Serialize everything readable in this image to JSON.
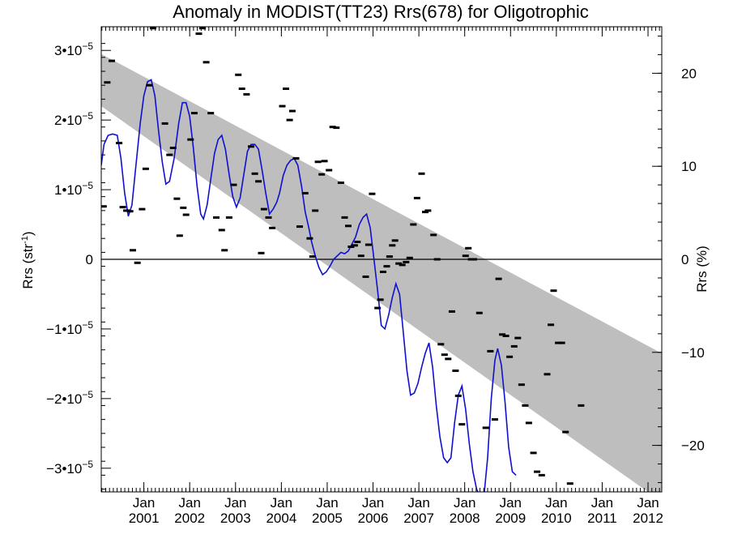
{
  "chart_data": {
    "type": "scatter",
    "title": "Anomaly in MODIST(TT23) Rrs(678) for Oligotrophic",
    "ylabel_left": "Rrs (str",
    "ylabel_left_sup": "-1",
    "ylabel_left_close": ")",
    "ylabel_right": "Rrs (%)",
    "xlim": [
      2000.07,
      2012.3
    ],
    "ylim": [
      -3.34e-05,
      3.34e-05
    ],
    "y_right_lim": [
      -25,
      25
    ],
    "grid": false,
    "x_ticks": [
      {
        "month": "Jan",
        "year": "2001",
        "x": 2001
      },
      {
        "month": "Jan",
        "year": "2002",
        "x": 2002
      },
      {
        "month": "Jan",
        "year": "2003",
        "x": 2003
      },
      {
        "month": "Jan",
        "year": "2004",
        "x": 2004
      },
      {
        "month": "Jan",
        "year": "2005",
        "x": 2005
      },
      {
        "month": "Jan",
        "year": "2006",
        "x": 2006
      },
      {
        "month": "Jan",
        "year": "2007",
        "x": 2007
      },
      {
        "month": "Jan",
        "year": "2008",
        "x": 2008
      },
      {
        "month": "Jan",
        "year": "2009",
        "x": 2009
      },
      {
        "month": "Jan",
        "year": "2010",
        "x": 2010
      },
      {
        "month": "Jan",
        "year": "2011",
        "x": 2011
      },
      {
        "month": "Jan",
        "year": "2012",
        "x": 2012
      }
    ],
    "y_left_ticks": [
      {
        "label": "3•10",
        "exp": "−5",
        "value": 3e-05
      },
      {
        "label": "2•10",
        "exp": "−5",
        "value": 2e-05
      },
      {
        "label": "1•10",
        "exp": "−5",
        "value": 1e-05
      },
      {
        "label": "0",
        "exp": "",
        "value": 0
      },
      {
        "label": "−1•10",
        "exp": "−5",
        "value": -1e-05
      },
      {
        "label": "−2•10",
        "exp": "−5",
        "value": -2e-05
      },
      {
        "label": "−3•10",
        "exp": "−5",
        "value": -3e-05
      }
    ],
    "y_right_ticks": [
      {
        "label": "20",
        "value": 20
      },
      {
        "label": "10",
        "value": 10
      },
      {
        "label": "0",
        "value": 0
      },
      {
        "label": "−10",
        "value": -10
      },
      {
        "label": "−20",
        "value": -20
      }
    ],
    "trend_band": {
      "x": [
        2000.07,
        2012.3
      ],
      "upper": [
        2.95e-05,
        -1.35e-05
      ],
      "lower": [
        2.2e-05,
        -3.48e-05
      ],
      "color": "#bebebe"
    },
    "zero_line": 0,
    "series": [
      {
        "type": "points",
        "color": "#000000",
        "points": [
          [
            2000.12,
            7.6e-06
          ],
          [
            2000.2,
            2.54e-05
          ],
          [
            2000.3,
            2.85e-05
          ],
          [
            2000.46,
            1.67e-05
          ],
          [
            2000.54,
            7.5e-06
          ],
          [
            2000.62,
            7e-06
          ],
          [
            2000.7,
            6.9e-06
          ],
          [
            2000.76,
            1.3e-06
          ],
          [
            2000.86,
            -5e-07
          ],
          [
            2000.96,
            7.2e-06
          ],
          [
            2001.04,
            1.3e-05
          ],
          [
            2001.12,
            2.5e-05
          ],
          [
            2001.2,
            3.32e-05
          ],
          [
            2001.46,
            1.95e-05
          ],
          [
            2001.56,
            1.5e-05
          ],
          [
            2001.64,
            1.6e-05
          ],
          [
            2001.72,
            8.7e-06
          ],
          [
            2001.78,
            3.4e-06
          ],
          [
            2001.86,
            7.4e-06
          ],
          [
            2001.92,
            6.4e-06
          ],
          [
            2002.02,
            1.72e-05
          ],
          [
            2002.1,
            2.1e-05
          ],
          [
            2002.2,
            3.24e-05
          ],
          [
            2002.28,
            3.32e-05
          ],
          [
            2002.36,
            2.83e-05
          ],
          [
            2002.46,
            2.1e-05
          ],
          [
            2002.58,
            6e-06
          ],
          [
            2002.7,
            4.2e-06
          ],
          [
            2002.76,
            1.3e-06
          ],
          [
            2002.86,
            6e-06
          ],
          [
            2002.96,
            1.07e-05
          ],
          [
            2003.06,
            2.65e-05
          ],
          [
            2003.14,
            2.45e-05
          ],
          [
            2003.24,
            2.37e-05
          ],
          [
            2003.34,
            1.62e-05
          ],
          [
            2003.42,
            1.23e-05
          ],
          [
            2003.5,
            1.12e-05
          ],
          [
            2003.56,
            9e-07
          ],
          [
            2003.62,
            7.2e-06
          ],
          [
            2003.72,
            6e-06
          ],
          [
            2003.8,
            4.5e-06
          ],
          [
            2004.02,
            2.2e-05
          ],
          [
            2004.1,
            2.45e-05
          ],
          [
            2004.18,
            2e-05
          ],
          [
            2004.24,
            2.13e-05
          ],
          [
            2004.32,
            1.45e-05
          ],
          [
            2004.4,
            4.7e-06
          ],
          [
            2004.52,
            9.5e-06
          ],
          [
            2004.62,
            3e-06
          ],
          [
            2004.68,
            4e-07
          ],
          [
            2004.74,
            7e-06
          ],
          [
            2004.8,
            1.4e-05
          ],
          [
            2004.88,
            1.22e-05
          ],
          [
            2004.94,
            1.41e-05
          ],
          [
            2005.04,
            1.28e-05
          ],
          [
            2005.12,
            1.9e-05
          ],
          [
            2005.2,
            1.89e-05
          ],
          [
            2005.3,
            1.1e-05
          ],
          [
            2005.38,
            6e-06
          ],
          [
            2005.46,
            4.8e-06
          ],
          [
            2005.52,
            1.8e-06
          ],
          [
            2005.6,
            2e-06
          ],
          [
            2005.66,
            2.5e-06
          ],
          [
            2005.74,
            5e-07
          ],
          [
            2005.84,
            -2.5e-06
          ],
          [
            2005.9,
            2.1e-06
          ],
          [
            2005.98,
            9.4e-06
          ],
          [
            2006.1,
            -7e-06
          ],
          [
            2006.16,
            -5.8e-06
          ],
          [
            2006.22,
            -1.8e-06
          ],
          [
            2006.3,
            -1e-06
          ],
          [
            2006.36,
            4e-07
          ],
          [
            2006.42,
            2e-06
          ],
          [
            2006.48,
            2.7e-06
          ],
          [
            2006.56,
            -6e-07
          ],
          [
            2006.64,
            -8e-07
          ],
          [
            2006.72,
            -4e-07
          ],
          [
            2006.8,
            2e-07
          ],
          [
            2006.88,
            5e-06
          ],
          [
            2006.96,
            8.8e-06
          ],
          [
            2007.06,
            1.23e-05
          ],
          [
            2007.14,
            6.8e-06
          ],
          [
            2007.2,
            7e-06
          ],
          [
            2007.32,
            3.5e-06
          ],
          [
            2007.4,
            0.0
          ],
          [
            2007.48,
            -1.22e-05
          ],
          [
            2007.56,
            -1.37e-05
          ],
          [
            2007.64,
            -1.43e-05
          ],
          [
            2007.72,
            -7.5e-06
          ],
          [
            2007.8,
            -1.6e-05
          ],
          [
            2007.86,
            -1.96e-05
          ],
          [
            2007.94,
            -2.37e-05
          ],
          [
            2008.02,
            5e-07
          ],
          [
            2008.08,
            1.6e-06
          ],
          [
            2008.14,
            0.0
          ],
          [
            2008.2,
            0.0
          ],
          [
            2008.32,
            -7.7e-06
          ],
          [
            2008.46,
            -2.42e-05
          ],
          [
            2008.56,
            -1.32e-05
          ],
          [
            2008.66,
            -2.3e-05
          ],
          [
            2008.74,
            -2.8e-06
          ],
          [
            2008.82,
            -1.08e-05
          ],
          [
            2008.9,
            -1.1e-05
          ],
          [
            2008.98,
            -1.4e-05
          ],
          [
            2009.08,
            -1.25e-05
          ],
          [
            2009.16,
            -1.13e-05
          ],
          [
            2009.24,
            -1.8e-05
          ],
          [
            2009.32,
            -2.1e-05
          ],
          [
            2009.4,
            -2.35e-05
          ],
          [
            2009.5,
            -2.78e-05
          ],
          [
            2009.58,
            -3.05e-05
          ],
          [
            2009.68,
            -3.1e-05
          ],
          [
            2009.8,
            -1.65e-05
          ],
          [
            2009.88,
            -9.4e-06
          ],
          [
            2009.94,
            -4.5e-06
          ],
          [
            2010.04,
            -1.2e-05
          ],
          [
            2010.12,
            -1.2e-05
          ],
          [
            2010.2,
            -2.48e-05
          ],
          [
            2010.3,
            -3.22e-05
          ],
          [
            2010.54,
            -2.1e-05
          ]
        ]
      },
      {
        "type": "line",
        "color": "#1010d0",
        "points": [
          [
            2000.07,
            1.35e-05
          ],
          [
            2000.13,
            1.65e-05
          ],
          [
            2000.22,
            1.78e-05
          ],
          [
            2000.32,
            1.8e-05
          ],
          [
            2000.42,
            1.78e-05
          ],
          [
            2000.5,
            1.45e-05
          ],
          [
            2000.58,
            9.5e-06
          ],
          [
            2000.66,
            6.2e-06
          ],
          [
            2000.74,
            7.8e-06
          ],
          [
            2000.82,
            1.3e-05
          ],
          [
            2000.92,
            1.95e-05
          ],
          [
            2001.0,
            2.35e-05
          ],
          [
            2001.08,
            2.55e-05
          ],
          [
            2001.16,
            2.58e-05
          ],
          [
            2001.24,
            2.35e-05
          ],
          [
            2001.32,
            1.85e-05
          ],
          [
            2001.4,
            1.4e-05
          ],
          [
            2001.48,
            1.08e-05
          ],
          [
            2001.56,
            1.12e-05
          ],
          [
            2001.66,
            1.45e-05
          ],
          [
            2001.76,
            1.95e-05
          ],
          [
            2001.84,
            2.25e-05
          ],
          [
            2001.92,
            2.25e-05
          ],
          [
            2002.0,
            2.05e-05
          ],
          [
            2002.08,
            1.6e-05
          ],
          [
            2002.16,
            1.05e-05
          ],
          [
            2002.24,
            6.5e-06
          ],
          [
            2002.3,
            5.8e-06
          ],
          [
            2002.38,
            7.8e-06
          ],
          [
            2002.46,
            1.15e-05
          ],
          [
            2002.54,
            1.52e-05
          ],
          [
            2002.62,
            1.72e-05
          ],
          [
            2002.7,
            1.78e-05
          ],
          [
            2002.78,
            1.58e-05
          ],
          [
            2002.86,
            1.22e-05
          ],
          [
            2002.94,
            9e-06
          ],
          [
            2003.02,
            7.5e-06
          ],
          [
            2003.1,
            8.8e-06
          ],
          [
            2003.18,
            1.22e-05
          ],
          [
            2003.26,
            1.55e-05
          ],
          [
            2003.34,
            1.65e-05
          ],
          [
            2003.42,
            1.65e-05
          ],
          [
            2003.5,
            1.58e-05
          ],
          [
            2003.58,
            1.28e-05
          ],
          [
            2003.66,
            9.5e-06
          ],
          [
            2003.74,
            6.5e-06
          ],
          [
            2003.82,
            7.2e-06
          ],
          [
            2003.9,
            8.2e-06
          ],
          [
            2003.96,
            9.5e-06
          ],
          [
            2004.04,
            1.2e-05
          ],
          [
            2004.12,
            1.35e-05
          ],
          [
            2004.2,
            1.42e-05
          ],
          [
            2004.28,
            1.45e-05
          ],
          [
            2004.36,
            1.35e-05
          ],
          [
            2004.44,
            1.05e-05
          ],
          [
            2004.52,
            6.8e-06
          ],
          [
            2004.6,
            4.5e-06
          ],
          [
            2004.66,
            2.5e-06
          ],
          [
            2004.74,
            5e-07
          ],
          [
            2004.82,
            -1.2e-06
          ],
          [
            2004.9,
            -2.2e-06
          ],
          [
            2004.98,
            -1.8e-06
          ],
          [
            2005.06,
            -1e-06
          ],
          [
            2005.14,
            0.0
          ],
          [
            2005.22,
            5e-07
          ],
          [
            2005.3,
            1e-06
          ],
          [
            2005.38,
            8e-07
          ],
          [
            2005.46,
            1.2e-06
          ],
          [
            2005.54,
            2.2e-06
          ],
          [
            2005.62,
            3.2e-06
          ],
          [
            2005.7,
            5e-06
          ],
          [
            2005.78,
            6e-06
          ],
          [
            2005.86,
            6.5e-06
          ],
          [
            2005.94,
            4.5e-06
          ],
          [
            2006.02,
            0.0
          ],
          [
            2006.1,
            -4.5e-06
          ],
          [
            2006.18,
            -9.5e-06
          ],
          [
            2006.26,
            -1e-05
          ],
          [
            2006.34,
            -8e-06
          ],
          [
            2006.42,
            -5.5e-06
          ],
          [
            2006.5,
            -3.5e-06
          ],
          [
            2006.58,
            -5e-06
          ],
          [
            2006.66,
            -1.05e-05
          ],
          [
            2006.74,
            -1.6e-05
          ],
          [
            2006.82,
            -1.95e-05
          ],
          [
            2006.9,
            -1.92e-05
          ],
          [
            2006.98,
            -1.78e-05
          ],
          [
            2007.06,
            -1.55e-05
          ],
          [
            2007.14,
            -1.35e-05
          ],
          [
            2007.22,
            -1.2e-05
          ],
          [
            2007.3,
            -1.55e-05
          ],
          [
            2007.38,
            -2.1e-05
          ],
          [
            2007.46,
            -2.55e-05
          ],
          [
            2007.54,
            -2.85e-05
          ],
          [
            2007.62,
            -2.92e-05
          ],
          [
            2007.7,
            -2.85e-05
          ],
          [
            2007.78,
            -2.35e-05
          ],
          [
            2007.86,
            -1.95e-05
          ],
          [
            2007.94,
            -1.82e-05
          ],
          [
            2008.02,
            -2.15e-05
          ],
          [
            2008.1,
            -2.65e-05
          ],
          [
            2008.18,
            -3.05e-05
          ],
          [
            2008.26,
            -3.3e-05
          ],
          [
            2008.34,
            -3.4e-05
          ],
          [
            2008.42,
            -3.4e-05
          ],
          [
            2008.5,
            -2.85e-05
          ],
          [
            2008.58,
            -2e-05
          ],
          [
            2008.66,
            -1.45e-05
          ],
          [
            2008.72,
            -1.28e-05
          ],
          [
            2008.8,
            -1.52e-05
          ],
          [
            2008.88,
            -2.05e-05
          ],
          [
            2008.96,
            -2.7e-05
          ],
          [
            2009.04,
            -3.05e-05
          ],
          [
            2009.12,
            -3.1e-05
          ]
        ]
      }
    ]
  }
}
